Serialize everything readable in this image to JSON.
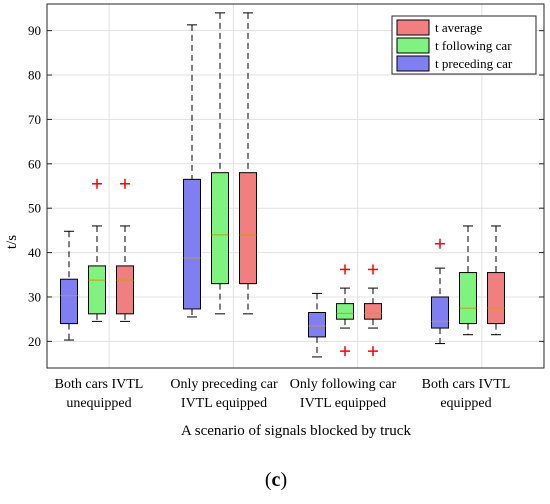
{
  "chart_data": {
    "type": "box",
    "categories": [
      [
        "Both cars IVTL",
        "unequipped"
      ],
      [
        "Only preceding car",
        "IVTL equipped"
      ],
      [
        "Only following car",
        "IVTL equipped"
      ],
      [
        "Both cars IVTL",
        "equipped"
      ]
    ],
    "xlabel": "A scenario of signals blocked by truck",
    "ylabel": "t/s",
    "ylim": [
      14,
      96
    ],
    "yticks": [
      20,
      30,
      40,
      50,
      60,
      70,
      80,
      90
    ],
    "grid": true,
    "legend_position": "top-right",
    "panel_label": [
      "(",
      "c",
      ")"
    ],
    "outlier_marker": "+",
    "outlier_color": "#ff0000",
    "series": [
      {
        "name": "t preceding car",
        "color": "#7f7ff2",
        "boxes": [
          {
            "min": 20.3,
            "q1": 24.0,
            "median": 30.3,
            "q3": 34.0,
            "max": 44.8,
            "outliers": []
          },
          {
            "min": 25.5,
            "q1": 27.3,
            "median": 38.8,
            "q3": 56.5,
            "max": 91.3,
            "outliers": []
          },
          {
            "min": 16.5,
            "q1": 21.0,
            "median": 23.5,
            "q3": 26.5,
            "max": 30.8,
            "outliers": []
          },
          {
            "min": 19.5,
            "q1": 23.0,
            "median": 24.5,
            "q3": 30.0,
            "max": 36.5,
            "outliers": [
              42.0
            ]
          }
        ]
      },
      {
        "name": "t following car",
        "color": "#7ff27f",
        "boxes": [
          {
            "min": 24.5,
            "q1": 26.2,
            "median": 33.8,
            "q3": 37.0,
            "max": 46.0,
            "outliers": [
              55.5
            ]
          },
          {
            "min": 26.2,
            "q1": 33.0,
            "median": 44.0,
            "q3": 58.0,
            "max": 94.0,
            "outliers": []
          },
          {
            "min": 23.0,
            "q1": 25.0,
            "median": 26.3,
            "q3": 28.5,
            "max": 32.0,
            "outliers": [
              36.2,
              17.8
            ]
          },
          {
            "min": 21.5,
            "q1": 24.0,
            "median": 27.5,
            "q3": 35.5,
            "max": 46.0,
            "outliers": []
          }
        ]
      },
      {
        "name": "t average",
        "color": "#f27f7f",
        "boxes": [
          {
            "min": 24.5,
            "q1": 26.2,
            "median": 33.8,
            "q3": 37.0,
            "max": 46.0,
            "outliers": [
              55.5
            ]
          },
          {
            "min": 26.2,
            "q1": 33.0,
            "median": 44.0,
            "q3": 58.0,
            "max": 94.0,
            "outliers": []
          },
          {
            "min": 23.0,
            "q1": 25.0,
            "median": 26.3,
            "q3": 28.5,
            "max": 32.0,
            "outliers": [
              36.2,
              17.8
            ]
          },
          {
            "min": 21.5,
            "q1": 24.0,
            "median": 27.5,
            "q3": 35.5,
            "max": 46.0,
            "outliers": []
          }
        ]
      }
    ],
    "legend_order": [
      "t average",
      "t following car",
      "t preceding car"
    ]
  }
}
